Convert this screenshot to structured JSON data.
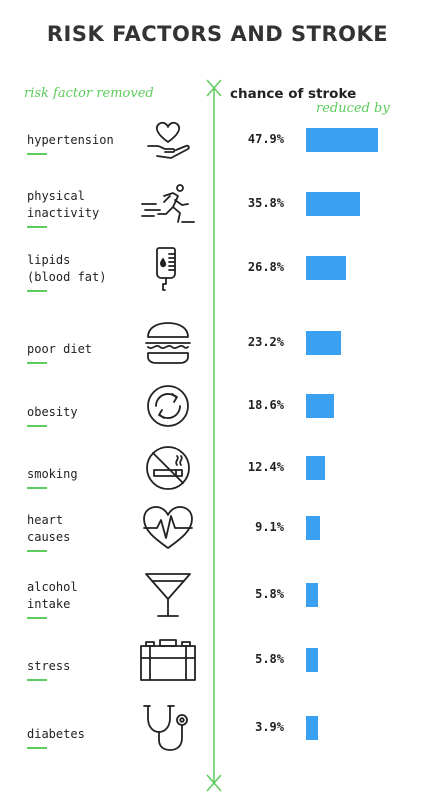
{
  "title": "RISK FACTORS AND STROKE",
  "header": {
    "left": "risk factor removed",
    "right_line1": "chance of stroke",
    "right_line2": "reduced by"
  },
  "colors": {
    "bar": "#3aa1f2",
    "accent": "#5ccc5c"
  },
  "chart_data": {
    "type": "bar",
    "orientation": "horizontal",
    "title": "RISK FACTORS AND STROKE",
    "categories": [
      "hypertension",
      "physical inactivity",
      "lipids (blood fat)",
      "poor diet",
      "obesity",
      "smoking",
      "heart causes",
      "alcohol intake",
      "stress",
      "diabetes"
    ],
    "values": [
      47.9,
      35.8,
      26.8,
      23.2,
      18.6,
      12.4,
      9.1,
      5.8,
      5.8,
      3.9
    ],
    "value_labels": [
      "47.9%",
      "35.8%",
      "26.8%",
      "23.2%",
      "18.6%",
      "12.4%",
      "9.1%",
      "5.8%",
      "5.8%",
      "3.9%"
    ],
    "units": "%",
    "grid": false
  },
  "rows": [
    {
      "label": "hypertension",
      "icon": "heart-hand-icon"
    },
    {
      "label": "physical\ninactivity",
      "icon": "running-person-icon"
    },
    {
      "label": "lipids\n(blood fat)",
      "icon": "iv-bag-icon"
    },
    {
      "label": "poor diet",
      "icon": "burger-icon"
    },
    {
      "label": "obesity",
      "icon": "circular-arrows-icon"
    },
    {
      "label": "smoking",
      "icon": "no-smoking-icon"
    },
    {
      "label": "heart\ncauses",
      "icon": "heartbeat-icon"
    },
    {
      "label": "alcohol\nintake",
      "icon": "cocktail-glass-icon"
    },
    {
      "label": "stress",
      "icon": "briefcase-icon"
    },
    {
      "label": "diabetes",
      "icon": "stethoscope-icon"
    }
  ]
}
